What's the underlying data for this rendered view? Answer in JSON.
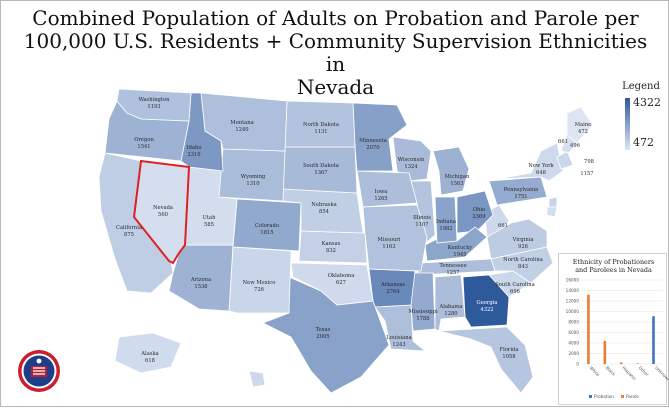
{
  "title_lines": [
    "Combined Population of Adults on Probation and Parole per",
    "100,000 U.S. Residents + Community Supervision Ethnicities in",
    "Nevada"
  ],
  "legend": {
    "title": "Legend",
    "max": "4322",
    "min": "472",
    "color_high": "#2e5a9c",
    "color_low": "#dde5f3"
  },
  "highlight_state": "Nevada",
  "highlight_color": "#e02020",
  "states": [
    {
      "id": "WA",
      "name": "Washington",
      "value": "1193"
    },
    {
      "id": "OR",
      "name": "Oregon",
      "value": "1541"
    },
    {
      "id": "CA",
      "name": "California",
      "value": "875"
    },
    {
      "id": "NV",
      "name": "Nevada",
      "value": "560"
    },
    {
      "id": "ID",
      "name": "Idaho",
      "value": "2310"
    },
    {
      "id": "MT",
      "name": "Montana",
      "value": "1240"
    },
    {
      "id": "WY",
      "name": "Wyoming",
      "value": "1310"
    },
    {
      "id": "UT",
      "name": "Utah",
      "value": "585"
    },
    {
      "id": "AZ",
      "name": "Arizona",
      "value": "1538"
    },
    {
      "id": "CO",
      "name": "Colorado",
      "value": "1815"
    },
    {
      "id": "NM",
      "name": "New Mexico",
      "value": "726"
    },
    {
      "id": "ND",
      "name": "North Dakota",
      "value": "1131"
    },
    {
      "id": "SD",
      "name": "South Dakota",
      "value": "1367"
    },
    {
      "id": "NE",
      "name": "Nebraska",
      "value": "854"
    },
    {
      "id": "KS",
      "name": "Kansas",
      "value": "832"
    },
    {
      "id": "OK",
      "name": "Oklahoma",
      "value": "627"
    },
    {
      "id": "TX",
      "name": "Texas",
      "value": "2005"
    },
    {
      "id": "MN",
      "name": "Minnesota",
      "value": "2070"
    },
    {
      "id": "IA",
      "name": "Iowa",
      "value": "1265"
    },
    {
      "id": "MO",
      "name": "Missouri",
      "value": "1163"
    },
    {
      "id": "AR",
      "name": "Arkansas",
      "value": "2764"
    },
    {
      "id": "LA",
      "name": "Louisiana",
      "value": "1243"
    },
    {
      "id": "WI",
      "name": "Wisconsin",
      "value": "1324"
    },
    {
      "id": "IL",
      "name": "Illinois",
      "value": "1107"
    },
    {
      "id": "MS",
      "name": "Mississippi",
      "value": "1788"
    },
    {
      "id": "MI",
      "name": "Michigan",
      "value": "1563"
    },
    {
      "id": "IN",
      "name": "Indiana",
      "value": "1982"
    },
    {
      "id": "KY",
      "name": "Kentucky",
      "value": "1945"
    },
    {
      "id": "TN",
      "name": "Tennessee",
      "value": "1257"
    },
    {
      "id": "AL",
      "name": "Alabama",
      "value": "1280"
    },
    {
      "id": "OH",
      "name": "Ohio",
      "value": "2369"
    },
    {
      "id": "GA",
      "name": "Georgia",
      "value": "4322"
    },
    {
      "id": "FL",
      "name": "Florida",
      "value": "1058"
    },
    {
      "id": "SC",
      "name": "South Carolina",
      "value": "696"
    },
    {
      "id": "NC",
      "name": "North Carolina",
      "value": "843"
    },
    {
      "id": "VA",
      "name": "Virginia",
      "value": "926"
    },
    {
      "id": "WV",
      "name": "",
      "value": "661"
    },
    {
      "id": "PA",
      "name": "Pennsylvania",
      "value": "1751"
    },
    {
      "id": "NY",
      "name": "New York",
      "value": "648"
    },
    {
      "id": "ME",
      "name": "Maine",
      "value": "472"
    },
    {
      "id": "AK",
      "name": "Alaska",
      "value": "618"
    },
    {
      "id": "HI",
      "name": "",
      "value": ""
    }
  ],
  "northeast_values": [
    "661",
    "496",
    "798",
    "1157"
  ],
  "inset_chart": {
    "title_lines": [
      "Ethnicity of Probationers",
      "and Parolees in Nevada"
    ],
    "chart_data": {
      "type": "bar",
      "title": "Ethnicity of Probationers and Parolees in Nevada",
      "categories": [
        "White",
        "Black",
        "Hispanic",
        "Other",
        "Unknown"
      ],
      "series": [
        {
          "name": "Probation",
          "color": "#4472c4",
          "values": [
            0,
            0,
            0,
            0,
            9100
          ]
        },
        {
          "name": "Parole",
          "color": "#ed7d31",
          "values": [
            13200,
            4400,
            300,
            120,
            0
          ]
        }
      ],
      "ylim": [
        0,
        16000
      ],
      "yticks": [
        "16000",
        "14000",
        "12000",
        "10000",
        "8000",
        "6000",
        "4000",
        "2000",
        "0"
      ]
    }
  },
  "logo_text": [
    "NEVADA",
    "BALLOON PARTY"
  ]
}
